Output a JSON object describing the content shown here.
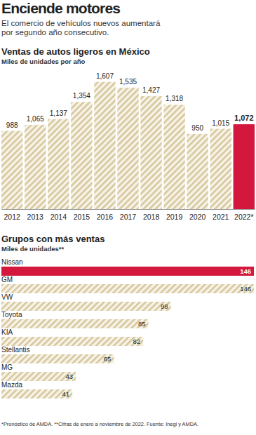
{
  "header": {
    "title": "Enciende motores",
    "subtitle": "El comercio de vehículos nuevos aumentará por segundo año consecutivo."
  },
  "chart_data": [
    {
      "type": "bar",
      "title": "Ventas de autos ligeros en México",
      "subtitle": "Miles de unidades por año",
      "categories": [
        "2012",
        "2013",
        "2014",
        "2015",
        "2016",
        "2017",
        "2018",
        "2019",
        "2020",
        "2021",
        "2022*"
      ],
      "values": [
        988,
        1065,
        1137,
        1354,
        1607,
        1535,
        1427,
        1318,
        950,
        1015,
        1072
      ],
      "value_labels": [
        "988",
        "1,065",
        "1,137",
        "1,354",
        "1,607",
        "1,535",
        "1,427",
        "1,318",
        "950",
        "1,015",
        "1,072"
      ],
      "colors": [
        "#d6c79c",
        "#d6c79c",
        "#d6c79c",
        "#d6c79c",
        "#d6c79c",
        "#d6c79c",
        "#d6c79c",
        "#d6c79c",
        "#d6c79c",
        "#d6c79c",
        "#d4183d"
      ],
      "ylim": [
        0,
        1800
      ],
      "data_labels": true,
      "tick_labels": "x"
    },
    {
      "type": "bar",
      "orientation": "horizontal",
      "title": "Grupos con más ventas",
      "subtitle": "Miles de unidades**",
      "categories": [
        "Nissan",
        "GM",
        "VW",
        "Toyota",
        "KIA",
        "Stellantis",
        "MG",
        "Mazda"
      ],
      "values": [
        146,
        146,
        98,
        85,
        82,
        65,
        43,
        41
      ],
      "colors": [
        "#d4183d",
        "#d6c79c",
        "#d6c79c",
        "#d6c79c",
        "#d6c79c",
        "#d6c79c",
        "#d6c79c",
        "#d6c79c"
      ],
      "xlim": [
        0,
        146
      ],
      "data_labels": true,
      "tick_labels": false
    }
  ],
  "footnote": "*Pronóstico de AMDA. **Cifras de enero a noviembre de 2022. Fuente: Inegi y AMDA."
}
